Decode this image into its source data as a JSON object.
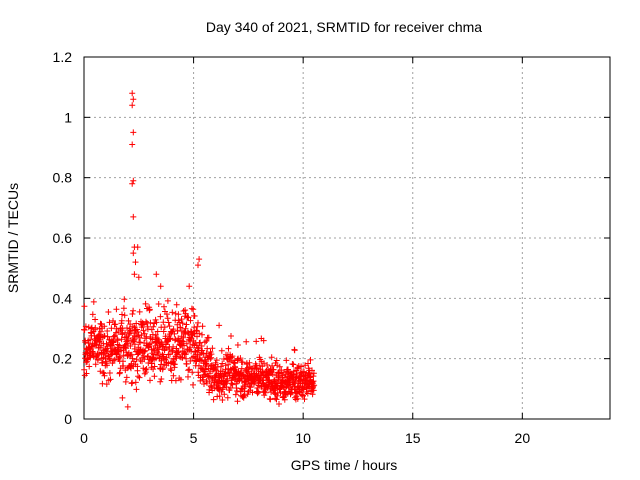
{
  "chart_data": {
    "type": "scatter",
    "title": "Day 340 of 2021, SRMTID for receiver chma",
    "xlabel": "GPS time / hours",
    "ylabel": "SRMTID / TECUs",
    "xlim": [
      0,
      24
    ],
    "ylim": [
      0,
      1.2
    ],
    "xticks": [
      0,
      5,
      10,
      15,
      20
    ],
    "yticks": [
      0,
      0.2,
      0.4,
      0.6,
      0.8,
      1,
      1.2
    ],
    "xtick_labels": [
      "0",
      "5",
      "10",
      "15",
      "20"
    ],
    "ytick_labels": [
      "0",
      "0.2",
      "0.4",
      "0.6",
      "0.8",
      "1",
      "1.2"
    ],
    "grid": true,
    "marker": "+",
    "color": "#ff0000",
    "point_count": 1200,
    "outliers": [
      {
        "x": 2.2,
        "y": 1.08
      },
      {
        "x": 2.25,
        "y": 1.06
      },
      {
        "x": 2.2,
        "y": 1.04
      },
      {
        "x": 2.25,
        "y": 0.95
      },
      {
        "x": 2.2,
        "y": 0.91
      },
      {
        "x": 2.25,
        "y": 0.79
      },
      {
        "x": 2.2,
        "y": 0.78
      },
      {
        "x": 2.25,
        "y": 0.67
      },
      {
        "x": 2.3,
        "y": 0.57
      },
      {
        "x": 2.45,
        "y": 0.57
      },
      {
        "x": 2.25,
        "y": 0.55
      },
      {
        "x": 2.35,
        "y": 0.52
      },
      {
        "x": 2.3,
        "y": 0.48
      },
      {
        "x": 3.3,
        "y": 0.48
      },
      {
        "x": 2.5,
        "y": 0.47
      },
      {
        "x": 5.25,
        "y": 0.53
      },
      {
        "x": 5.2,
        "y": 0.51
      },
      {
        "x": 4.8,
        "y": 0.44
      },
      {
        "x": 3.5,
        "y": 0.44
      },
      {
        "x": 2.0,
        "y": 0.04
      },
      {
        "x": 1.75,
        "y": 0.07
      },
      {
        "x": 8.2,
        "y": 0.26
      },
      {
        "x": 9.6,
        "y": 0.23
      }
    ],
    "trend": [
      {
        "x": 0.0,
        "y": 0.22
      },
      {
        "x": 0.5,
        "y": 0.26
      },
      {
        "x": 1.0,
        "y": 0.2
      },
      {
        "x": 1.5,
        "y": 0.24
      },
      {
        "x": 2.0,
        "y": 0.24
      },
      {
        "x": 2.5,
        "y": 0.23
      },
      {
        "x": 3.0,
        "y": 0.26
      },
      {
        "x": 3.5,
        "y": 0.23
      },
      {
        "x": 4.0,
        "y": 0.24
      },
      {
        "x": 4.5,
        "y": 0.26
      },
      {
        "x": 5.0,
        "y": 0.24
      },
      {
        "x": 5.5,
        "y": 0.19
      },
      {
        "x": 6.0,
        "y": 0.13
      },
      {
        "x": 6.5,
        "y": 0.15
      },
      {
        "x": 7.0,
        "y": 0.15
      },
      {
        "x": 7.5,
        "y": 0.13
      },
      {
        "x": 8.0,
        "y": 0.14
      },
      {
        "x": 8.5,
        "y": 0.12
      },
      {
        "x": 9.0,
        "y": 0.12
      },
      {
        "x": 9.5,
        "y": 0.12
      },
      {
        "x": 10.0,
        "y": 0.12
      },
      {
        "x": 10.5,
        "y": 0.13
      }
    ],
    "spread": [
      {
        "x": 0.0,
        "s": 0.05
      },
      {
        "x": 2.0,
        "s": 0.06
      },
      {
        "x": 3.0,
        "s": 0.07
      },
      {
        "x": 5.0,
        "s": 0.07
      },
      {
        "x": 6.0,
        "s": 0.045
      },
      {
        "x": 8.0,
        "s": 0.04
      },
      {
        "x": 10.5,
        "s": 0.035
      }
    ]
  }
}
